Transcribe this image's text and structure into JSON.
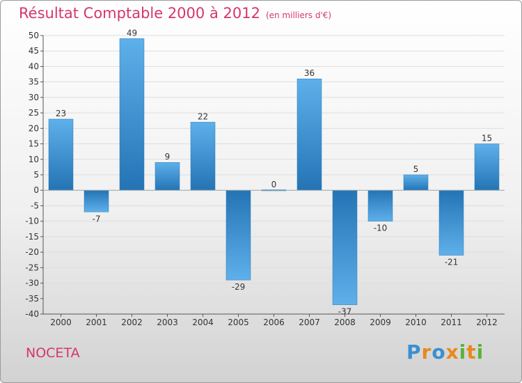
{
  "chart_data": {
    "type": "bar",
    "title": "Résultat Comptable 2000 à 2012",
    "subtitle": "(en milliers d'€)",
    "categories": [
      "2000",
      "2001",
      "2002",
      "2003",
      "2004",
      "2005",
      "2006",
      "2007",
      "2008",
      "2009",
      "2010",
      "2011",
      "2012"
    ],
    "values": [
      23,
      -7,
      49,
      9,
      22,
      -29,
      0,
      36,
      -37,
      -10,
      5,
      -21,
      15
    ],
    "data_labels": [
      "23",
      "-7",
      "49",
      "9",
      "22",
      "-29",
      "0",
      "36",
      "-37",
      "-10",
      "5",
      "-21",
      "15"
    ],
    "ylim": [
      -40,
      50
    ],
    "yticks": [
      -40,
      -35,
      -30,
      -25,
      -20,
      -15,
      -10,
      -5,
      0,
      5,
      10,
      15,
      20,
      25,
      30,
      35,
      40,
      45,
      50
    ],
    "grid": true,
    "xlabel": "",
    "ylabel": "",
    "bar_color": "#2f86c8"
  },
  "footer": {
    "town": "NOCETA",
    "logo_letters": [
      "P",
      "r",
      "o",
      "x",
      "i",
      "t",
      "i"
    ],
    "logo_colors": [
      "#3a8fd0",
      "#e8891f",
      "#3a8fd0",
      "#e8891f",
      "#5ab33c",
      "#e8891f",
      "#5ab33c"
    ]
  },
  "colors": {
    "title": "#d5366b"
  }
}
